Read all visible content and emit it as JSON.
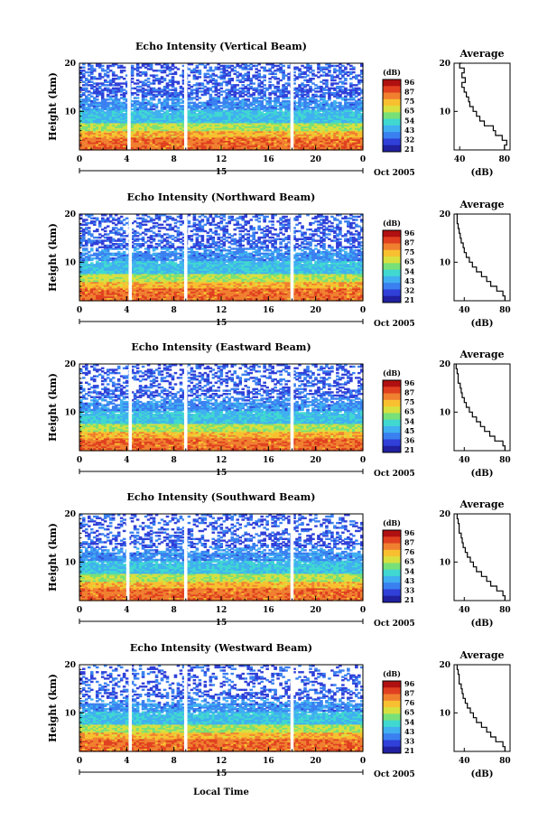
{
  "figure": {
    "xlabel": "Local Time",
    "date_label": "Oct 2005",
    "day_label": "15",
    "colorbar_unit": "(dB)",
    "colorbar_ticks": [
      "96",
      "87",
      "75",
      "65",
      "54",
      "43",
      "32",
      "21"
    ],
    "average_title": "Average",
    "average_xlabel": "(dB)",
    "colors": {
      "colormap": [
        "#2020a0",
        "#3040d8",
        "#3a80f0",
        "#40b0f0",
        "#40d8d0",
        "#78e078",
        "#d8e040",
        "#f8c030",
        "#f08030",
        "#e04020",
        "#b01010"
      ],
      "gap": "#ffffff",
      "line": "#000000"
    }
  },
  "chart_data": [
    {
      "type": "heatmap",
      "title": "Echo Intensity (Vertical Beam)",
      "ylabel": "Height (km)",
      "x_ticks": [
        "0",
        "4",
        "8",
        "12",
        "16",
        "20",
        "0"
      ],
      "xlim": [
        0,
        24
      ],
      "y_ticks": [
        "10",
        "20"
      ],
      "ylim": [
        2,
        20
      ],
      "colorbar": {
        "unit": "(dB)",
        "ticks": [
          "96",
          "87",
          "75",
          "65",
          "54",
          "43",
          "32",
          "21"
        ],
        "range": [
          21,
          96
        ]
      },
      "data_gaps_hours": [
        4.2,
        9.0,
        18.0
      ],
      "average_profile": {
        "title": "Average",
        "xlabel": "(dB)",
        "x_ticks": [
          "40",
          "80"
        ],
        "xlim": [
          35,
          85
        ],
        "y_ticks": [
          "10",
          "20"
        ],
        "ylim": [
          2,
          20
        ],
        "height_km": [
          2,
          3,
          4,
          5,
          6,
          7,
          8,
          9,
          10,
          11,
          12,
          13,
          14,
          15,
          16,
          17,
          18,
          19,
          20
        ],
        "echo_db": [
          80,
          82,
          78,
          72,
          70,
          62,
          58,
          55,
          52,
          49,
          48,
          46,
          44,
          42,
          45,
          42,
          44,
          40,
          42
        ]
      }
    },
    {
      "type": "heatmap",
      "title": "Echo Intensity (Northward Beam)",
      "ylabel": "Height (km)",
      "x_ticks": [
        "0",
        "4",
        "8",
        "12",
        "16",
        "20",
        "0"
      ],
      "xlim": [
        0,
        24
      ],
      "y_ticks": [
        "10",
        "20"
      ],
      "ylim": [
        2,
        20
      ],
      "colorbar": {
        "unit": "(dB)",
        "ticks": [
          "96",
          "87",
          "75",
          "65",
          "54",
          "43",
          "32",
          "21"
        ],
        "range": [
          21,
          96
        ]
      },
      "data_gaps_hours": [
        4.3,
        9.0,
        18.0
      ],
      "average_profile": {
        "title": "Average",
        "xlabel": "(dB)",
        "x_ticks": [
          "40",
          "80"
        ],
        "xlim": [
          30,
          85
        ],
        "y_ticks": [
          "10",
          "20"
        ],
        "ylim": [
          2,
          20
        ],
        "height_km": [
          2,
          3,
          4,
          5,
          6,
          7,
          8,
          9,
          10,
          11,
          12,
          13,
          14,
          15,
          16,
          17,
          18,
          19,
          20
        ],
        "echo_db": [
          80,
          78,
          72,
          66,
          62,
          57,
          52,
          48,
          45,
          42,
          40,
          39,
          37,
          36,
          35,
          34,
          33,
          33,
          32
        ]
      }
    },
    {
      "type": "heatmap",
      "title": "Echo Intensity (Eastward Beam)",
      "ylabel": "Height (km)",
      "x_ticks": [
        "0",
        "4",
        "8",
        "12",
        "16",
        "20",
        "0"
      ],
      "xlim": [
        0,
        24
      ],
      "y_ticks": [
        "10",
        "20"
      ],
      "ylim": [
        2,
        20
      ],
      "colorbar": {
        "unit": "(dB)",
        "ticks": [
          "96",
          "87",
          "75",
          "65",
          "54",
          "45",
          "36",
          "21"
        ],
        "range": [
          21,
          96
        ]
      },
      "data_gaps_hours": [
        4.3,
        9.0,
        18.0
      ],
      "average_profile": {
        "title": "Average",
        "xlabel": "(dB)",
        "x_ticks": [
          "40",
          "80"
        ],
        "xlim": [
          30,
          85
        ],
        "y_ticks": [
          "10",
          "20"
        ],
        "ylim": [
          2,
          20
        ],
        "height_km": [
          2,
          3,
          4,
          5,
          6,
          7,
          8,
          9,
          10,
          11,
          12,
          13,
          14,
          15,
          16,
          17,
          18,
          19,
          20
        ],
        "echo_db": [
          80,
          78,
          70,
          65,
          60,
          56,
          52,
          48,
          45,
          42,
          40,
          38,
          37,
          36,
          34,
          34,
          33,
          32,
          32
        ]
      }
    },
    {
      "type": "heatmap",
      "title": "Echo Intensity (Southward Beam)",
      "ylabel": "Height (km)",
      "x_ticks": [
        "0",
        "4",
        "8",
        "12",
        "16",
        "20",
        "0"
      ],
      "xlim": [
        0,
        24
      ],
      "y_ticks": [
        "10",
        "20"
      ],
      "ylim": [
        2,
        20
      ],
      "colorbar": {
        "unit": "(dB)",
        "ticks": [
          "96",
          "87",
          "76",
          "65",
          "54",
          "43",
          "33",
          "21"
        ],
        "range": [
          21,
          96
        ]
      },
      "data_gaps_hours": [
        4.1,
        9.0,
        18.0
      ],
      "average_profile": {
        "title": "Average",
        "xlabel": "(dB)",
        "x_ticks": [
          "40",
          "80"
        ],
        "xlim": [
          30,
          85
        ],
        "y_ticks": [
          "10",
          "20"
        ],
        "ylim": [
          2,
          20
        ],
        "height_km": [
          2,
          3,
          4,
          5,
          6,
          7,
          8,
          9,
          10,
          11,
          12,
          13,
          14,
          15,
          16,
          17,
          18,
          19,
          20
        ],
        "echo_db": [
          80,
          78,
          72,
          66,
          62,
          57,
          52,
          49,
          46,
          43,
          41,
          39,
          38,
          37,
          35,
          35,
          34,
          33,
          33
        ]
      }
    },
    {
      "type": "heatmap",
      "title": "Echo Intensity (Westward Beam)",
      "ylabel": "Height (km)",
      "x_ticks": [
        "0",
        "4",
        "8",
        "12",
        "16",
        "20",
        "0"
      ],
      "xlim": [
        0,
        24
      ],
      "y_ticks": [
        "10",
        "20"
      ],
      "ylim": [
        2,
        20
      ],
      "colorbar": {
        "unit": "(dB)",
        "ticks": [
          "96",
          "87",
          "76",
          "65",
          "54",
          "43",
          "33",
          "21"
        ],
        "range": [
          21,
          96
        ]
      },
      "data_gaps_hours": [
        4.3,
        9.0,
        18.0
      ],
      "average_profile": {
        "title": "Average",
        "xlabel": "(dB)",
        "x_ticks": [
          "40",
          "80"
        ],
        "xlim": [
          30,
          85
        ],
        "y_ticks": [
          "10",
          "20"
        ],
        "ylim": [
          2,
          20
        ],
        "height_km": [
          2,
          3,
          4,
          5,
          6,
          7,
          8,
          9,
          10,
          11,
          12,
          13,
          14,
          15,
          16,
          17,
          18,
          19,
          20
        ],
        "echo_db": [
          80,
          78,
          71,
          66,
          62,
          57,
          52,
          49,
          46,
          43,
          41,
          39,
          38,
          37,
          35,
          35,
          34,
          33,
          33
        ]
      }
    }
  ]
}
